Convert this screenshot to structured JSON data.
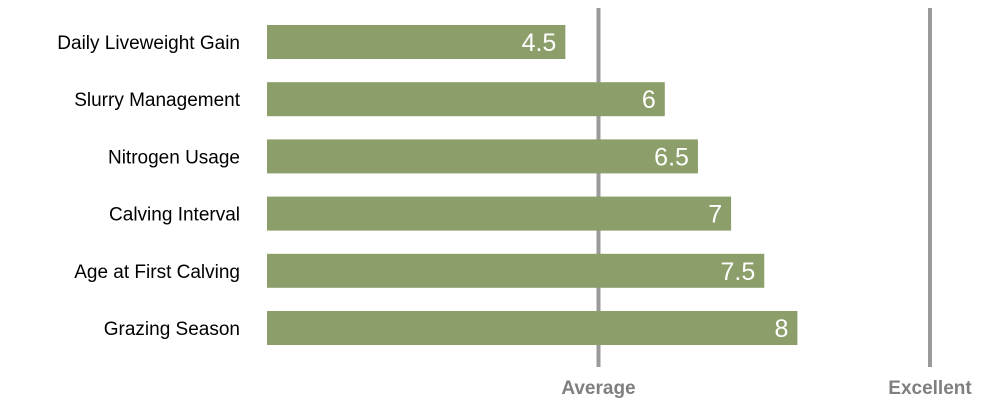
{
  "chart_data": {
    "type": "bar",
    "orientation": "horizontal",
    "categories": [
      "Daily Liveweight Gain",
      "Slurry Management",
      "Nitrogen Usage",
      "Calving Interval",
      "Age at First Calving",
      "Grazing Season"
    ],
    "values": [
      4.5,
      6,
      6.5,
      7,
      7.5,
      8
    ],
    "data_labels": [
      "4.5",
      "6",
      "6.5",
      "7",
      "7.5",
      "8"
    ],
    "xlim": [
      0,
      10
    ],
    "reference_lines": [
      {
        "label": "Average",
        "value": 5
      },
      {
        "label": "Excellent",
        "value": 10
      }
    ],
    "colors": {
      "bar": "#8c9e69",
      "reference_line": "#9a9a9a",
      "reference_label": "#7f7f7f",
      "bar_label": "#ffffff",
      "category_label": "#000000"
    },
    "grid": false,
    "legend": "none"
  }
}
